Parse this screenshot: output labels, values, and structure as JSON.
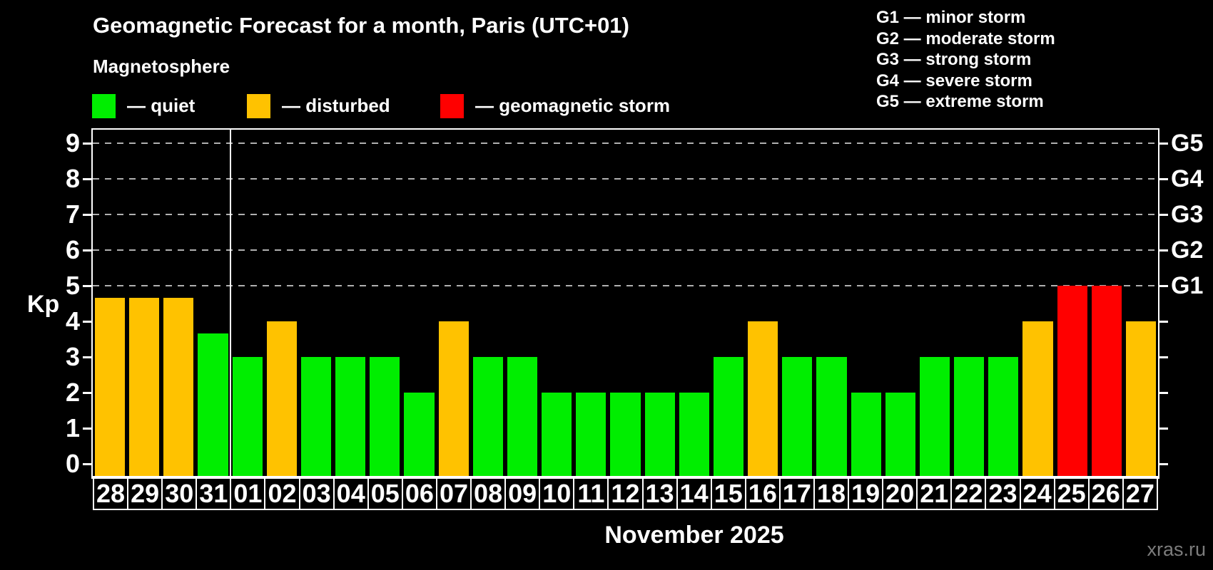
{
  "title": "Geomagnetic Forecast for a month, Paris (UTC+01)",
  "subtitle": "Magnetosphere",
  "status_legend": {
    "items": [
      {
        "name": "quiet",
        "label": "— quiet",
        "color": "#00ee00"
      },
      {
        "name": "disturbed",
        "label": "— disturbed",
        "color": "#ffc200"
      },
      {
        "name": "storm",
        "label": "— geomagnetic storm",
        "color": "#ff0000"
      }
    ]
  },
  "storm_scale_legend": {
    "items": [
      "G1 — minor storm",
      "G2 — moderate storm",
      "G3 — strong storm",
      "G4 — severe storm",
      "G5 — extreme storm"
    ]
  },
  "chart_data": {
    "type": "bar",
    "title": "Geomagnetic Forecast for a month, Paris (UTC+01)",
    "subtitle": "Magnetosphere",
    "ylabel": "Kp",
    "xlabel": "November 2025",
    "ylim": [
      0,
      9
    ],
    "y_ticks": [
      0,
      1,
      2,
      3,
      4,
      5,
      6,
      7,
      8,
      9
    ],
    "right_axis_labels": [
      {
        "label": "G5",
        "kp": 9
      },
      {
        "label": "G4",
        "kp": 8
      },
      {
        "label": "G3",
        "kp": 7
      },
      {
        "label": "G2",
        "kp": 6
      },
      {
        "label": "G1",
        "kp": 5
      }
    ],
    "gridlines_at_kp": [
      5,
      6,
      7,
      8,
      9
    ],
    "grid": "dashed horizontal at storm levels only",
    "legend_position": "top",
    "month_boundary_after": "31",
    "categories": [
      "28",
      "29",
      "30",
      "31",
      "01",
      "02",
      "03",
      "04",
      "05",
      "06",
      "07",
      "08",
      "09",
      "10",
      "11",
      "12",
      "13",
      "14",
      "15",
      "16",
      "17",
      "18",
      "19",
      "20",
      "21",
      "22",
      "23",
      "24",
      "25",
      "26",
      "27"
    ],
    "series": [
      {
        "name": "Kp forecast",
        "values": [
          4.67,
          4.67,
          4.67,
          3.67,
          3,
          4,
          3,
          3,
          3,
          2,
          4,
          3,
          3,
          2,
          2,
          2,
          2,
          2,
          3,
          4,
          3,
          3,
          2,
          2,
          3,
          3,
          3,
          4,
          5,
          5,
          4
        ]
      }
    ],
    "statuses": [
      "disturbed",
      "disturbed",
      "disturbed",
      "quiet",
      "quiet",
      "disturbed",
      "quiet",
      "quiet",
      "quiet",
      "quiet",
      "disturbed",
      "quiet",
      "quiet",
      "quiet",
      "quiet",
      "quiet",
      "quiet",
      "quiet",
      "quiet",
      "disturbed",
      "quiet",
      "quiet",
      "quiet",
      "quiet",
      "quiet",
      "quiet",
      "quiet",
      "disturbed",
      "storm",
      "storm",
      "disturbed"
    ],
    "colors": {
      "quiet": "#00ee00",
      "disturbed": "#ffc200",
      "storm": "#ff0000"
    }
  },
  "footer": {
    "month_label": "November 2025",
    "watermark": "xras.ru"
  }
}
